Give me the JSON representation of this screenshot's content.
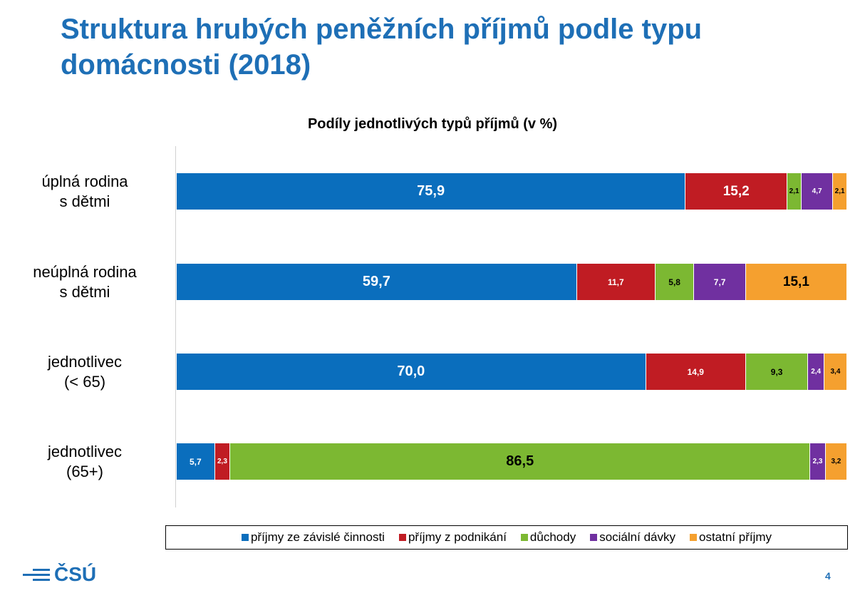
{
  "slide": {
    "title": "Struktura hrubých peněžních příjmů podle typu domácnosti (2018)",
    "page_number": "4",
    "logo_text": "ČSÚ"
  },
  "colors": {
    "title": "#1e6fb6",
    "series": [
      "#0a6ebd",
      "#c01c23",
      "#7cb832",
      "#7030a0",
      "#f5a02f"
    ]
  },
  "chart_data": {
    "type": "bar",
    "orientation": "horizontal",
    "stacked": true,
    "title": "Podíly jednotlivých typů příjmů (v %)",
    "categories": [
      "úplná rodina s dětmi",
      "neúplná rodina s dětmi",
      "jednotlivec (< 65)",
      "jednotlivec (65+)"
    ],
    "category_lines": [
      [
        "úplná rodina",
        "s dětmi"
      ],
      [
        "neúplná rodina",
        "s dětmi"
      ],
      [
        "jednotlivec",
        "(< 65)"
      ],
      [
        "jednotlivec",
        "(65+)"
      ]
    ],
    "series": [
      {
        "name": "příjmy ze závislé činnosti",
        "values": [
          75.9,
          59.7,
          70.0,
          5.7
        ],
        "labels": [
          "75,9",
          "59,7",
          "70,0",
          "5,7"
        ]
      },
      {
        "name": "příjmy z podnikání",
        "values": [
          15.2,
          11.7,
          14.9,
          2.3
        ],
        "labels": [
          "15,2",
          "11,7",
          "14,9",
          "2,3"
        ]
      },
      {
        "name": "důchody",
        "values": [
          2.1,
          5.8,
          9.3,
          86.5
        ],
        "labels": [
          "2,1",
          "5,8",
          "9,3",
          "86,5"
        ]
      },
      {
        "name": "sociální dávky",
        "values": [
          4.7,
          7.7,
          2.4,
          2.3
        ],
        "labels": [
          "4,7",
          "7,7",
          "2,4",
          "2,3"
        ]
      },
      {
        "name": "ostatní příjmy",
        "values": [
          2.1,
          15.1,
          3.4,
          3.2
        ],
        "labels": [
          "2,1",
          "15,1",
          "3,4",
          "3,2"
        ]
      }
    ],
    "legend_position": "bottom",
    "grid": false
  }
}
